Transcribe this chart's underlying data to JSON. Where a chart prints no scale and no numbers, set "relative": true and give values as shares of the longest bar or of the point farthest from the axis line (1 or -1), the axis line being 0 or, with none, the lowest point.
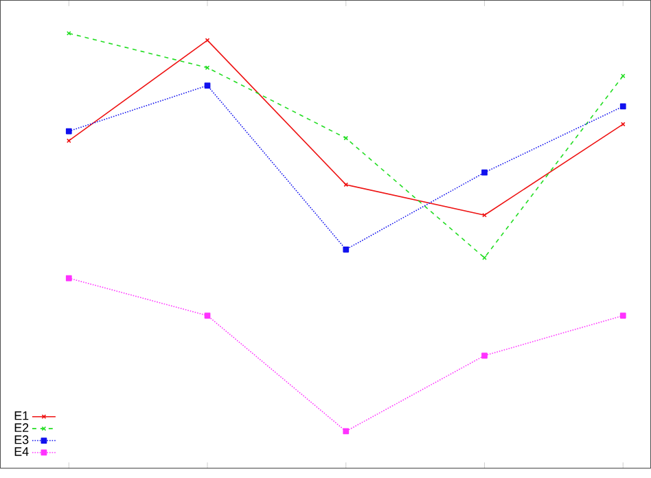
{
  "chart_data": {
    "type": "line",
    "relative": true,
    "categories": [
      null,
      null,
      null,
      null,
      null
    ],
    "legend": "bottom left",
    "grid": false,
    "series": [
      {
        "name": "E1",
        "color": "#ee1111",
        "marker": "cross",
        "line_style": "solid",
        "values": [
          0.753,
          0.984,
          0.652,
          0.582,
          0.791
        ]
      },
      {
        "name": "E2",
        "color": "#22dd22",
        "marker": "cross",
        "line_style": "dashed",
        "values": [
          1,
          0.921,
          0.759,
          0.484,
          0.902
        ]
      },
      {
        "name": "E3",
        "color": "#1111ee",
        "marker": "square",
        "line_style": "dotted",
        "values": [
          0.775,
          0.88,
          0.503,
          0.68,
          0.832
        ]
      },
      {
        "name": "E4",
        "color": "#ff33ff",
        "marker": "square",
        "line_style": "dotted",
        "values": [
          0.437,
          0.351,
          0.085,
          0.259,
          0.351
        ]
      }
    ]
  }
}
